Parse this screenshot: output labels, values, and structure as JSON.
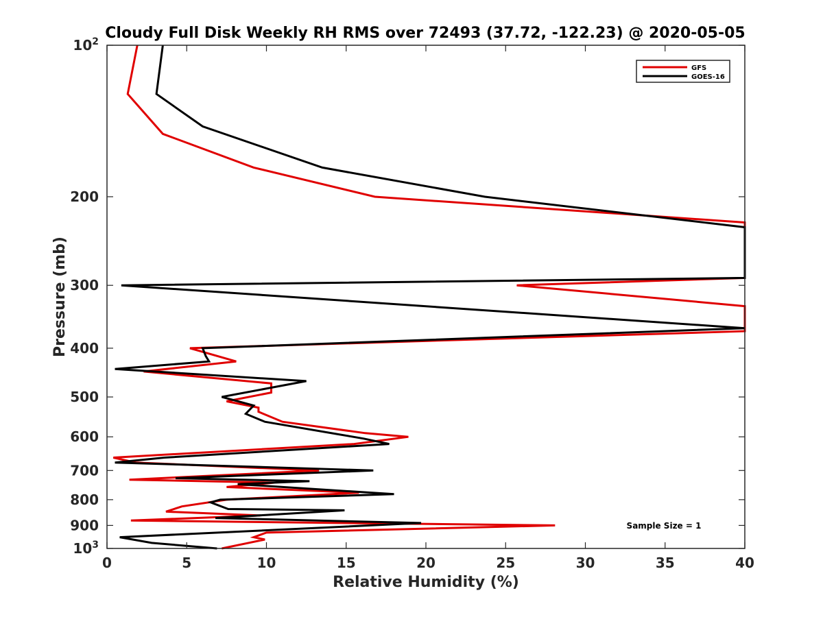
{
  "chart_data": {
    "type": "line",
    "title": "Cloudy Full Disk Weekly RH RMS over 72493 (37.72, -122.23) @ 2020-05-05",
    "xlabel": "Relative Humidity (%)",
    "ylabel": "Pressure (mb)",
    "xlim": [
      0,
      40
    ],
    "ylim": [
      100,
      1000
    ],
    "y_scale": "log",
    "y_reversed": true,
    "x_ticks": [
      "0",
      "5",
      "10",
      "15",
      "20",
      "25",
      "30",
      "35",
      "40"
    ],
    "y_ticks": [
      {
        "value": 100,
        "base": "10",
        "exp": "2"
      },
      {
        "value": 200,
        "label": "200"
      },
      {
        "value": 300,
        "label": "300"
      },
      {
        "value": 400,
        "label": "400"
      },
      {
        "value": 500,
        "label": "500"
      },
      {
        "value": 600,
        "label": "600"
      },
      {
        "value": 700,
        "label": "700"
      },
      {
        "value": 800,
        "label": "800"
      },
      {
        "value": 900,
        "label": "900"
      },
      {
        "value": 1000,
        "base": "10",
        "exp": "3"
      }
    ],
    "legend": {
      "position": "top-right"
    },
    "annotation": "Sample Size = 1",
    "series": [
      {
        "name": "GFS",
        "color": "#e00000",
        "points": [
          [
            1.9,
            100
          ],
          [
            1.3,
            125
          ],
          [
            3.5,
            150
          ],
          [
            9.2,
            175
          ],
          [
            16.8,
            200
          ],
          [
            40.0,
            225
          ],
          [
            40.0,
            250
          ],
          [
            40.0,
            275
          ],
          [
            40.0,
            290
          ],
          [
            25.7,
            300
          ],
          [
            40.0,
            330
          ],
          [
            40.0,
            350
          ],
          [
            40.0,
            370
          ],
          [
            5.2,
            400
          ],
          [
            8.1,
            425
          ],
          [
            2.3,
            445
          ],
          [
            10.3,
            470
          ],
          [
            10.3,
            490
          ],
          [
            7.5,
            510
          ],
          [
            9.5,
            525
          ],
          [
            9.5,
            535
          ],
          [
            11.0,
            560
          ],
          [
            16.2,
            590
          ],
          [
            18.9,
            600
          ],
          [
            15.5,
            620
          ],
          [
            0.4,
            660
          ],
          [
            1.8,
            675
          ],
          [
            13.3,
            700
          ],
          [
            1.4,
            730
          ],
          [
            10.5,
            740
          ],
          [
            7.5,
            755
          ],
          [
            15.8,
            775
          ],
          [
            7.5,
            800
          ],
          [
            4.7,
            825
          ],
          [
            3.7,
            845
          ],
          [
            9.6,
            860
          ],
          [
            1.5,
            880
          ],
          [
            28.1,
            900
          ],
          [
            10.0,
            930
          ],
          [
            9.2,
            950
          ],
          [
            9.9,
            960
          ],
          [
            7.2,
            1000
          ]
        ]
      },
      {
        "name": "GOES-16",
        "color": "#000000",
        "points": [
          [
            3.5,
            100
          ],
          [
            3.1,
            125
          ],
          [
            6.0,
            145
          ],
          [
            13.5,
            175
          ],
          [
            23.7,
            200
          ],
          [
            40.0,
            230
          ],
          [
            40.0,
            250
          ],
          [
            40.0,
            290
          ],
          [
            0.9,
            300
          ],
          [
            40.0,
            365
          ],
          [
            6.0,
            400
          ],
          [
            6.2,
            415
          ],
          [
            6.4,
            425
          ],
          [
            0.5,
            440
          ],
          [
            12.5,
            465
          ],
          [
            7.2,
            500
          ],
          [
            9.2,
            520
          ],
          [
            8.7,
            540
          ],
          [
            9.9,
            560
          ],
          [
            16.1,
            605
          ],
          [
            17.7,
            620
          ],
          [
            3.6,
            660
          ],
          [
            0.5,
            675
          ],
          [
            16.7,
            700
          ],
          [
            4.3,
            725
          ],
          [
            12.7,
            735
          ],
          [
            8.2,
            745
          ],
          [
            18.0,
            780
          ],
          [
            7.1,
            800
          ],
          [
            6.5,
            810
          ],
          [
            7.6,
            835
          ],
          [
            14.9,
            840
          ],
          [
            6.8,
            870
          ],
          [
            19.7,
            890
          ],
          [
            0.8,
            950
          ],
          [
            2.8,
            975
          ],
          [
            6.9,
            1000
          ]
        ]
      }
    ]
  }
}
